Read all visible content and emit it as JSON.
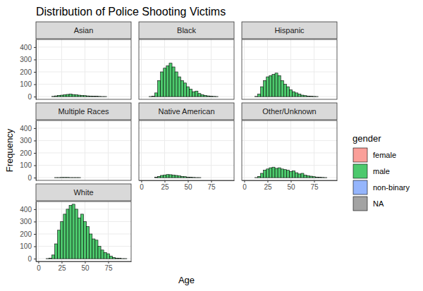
{
  "chart_data": {
    "type": "histogram",
    "title": "Distribution of Police Shooting Victims",
    "x_label": "Age",
    "y_label": "Frequency",
    "legend_title": "gender",
    "legend": "right",
    "grid": true,
    "xlim": [
      -2.6,
      99.6
    ],
    "xticks": [
      0,
      25,
      50,
      75
    ],
    "ylim": [
      -22,
      462
    ],
    "yticks": [
      0,
      100,
      200,
      300,
      400
    ],
    "bins": [
      2,
      5.1,
      8.2,
      11.3,
      14.4,
      17.5,
      20.6,
      23.7,
      26.8,
      29.9,
      33,
      36.1,
      39.2,
      42.3,
      45.4,
      48.5,
      51.6,
      54.7,
      57.8,
      60.9,
      64,
      67.1,
      70.2,
      73.3,
      76.4,
      79.5,
      82.6,
      85.7,
      88.8,
      91.9,
      95
    ],
    "series": [
      {
        "name": "female",
        "color": "#FA9F99"
      },
      {
        "name": "male",
        "color": "#4DC96D"
      },
      {
        "name": "non-binary",
        "color": "#95B5FC"
      },
      {
        "name": "NA",
        "color": "#A3A3A3"
      }
    ],
    "facets": [
      {
        "title": "Asian",
        "series": [
          {
            "name": "male",
            "values": [
              0,
              0,
              0,
              0,
              2,
              6,
              10,
              12,
              15,
              18,
              20,
              17,
              15,
              12,
              10,
              8,
              6,
              5,
              4,
              3,
              2,
              1,
              1,
              0,
              0,
              0,
              0,
              0,
              0,
              0
            ]
          }
        ]
      },
      {
        "title": "Black",
        "series": [
          {
            "name": "male",
            "values": [
              0,
              0,
              1,
              3,
              30,
              130,
              200,
              230,
              250,
              270,
              240,
              200,
              160,
              130,
              110,
              80,
              60,
              40,
              45,
              25,
              15,
              10,
              6,
              4,
              2,
              1,
              0,
              0,
              0,
              0
            ]
          }
        ]
      },
      {
        "title": "Hispanic",
        "series": [
          {
            "name": "male",
            "values": [
              0,
              0,
              0,
              2,
              20,
              80,
              130,
              160,
              170,
              180,
              190,
              170,
              130,
              100,
              80,
              55,
              40,
              30,
              20,
              12,
              8,
              5,
              3,
              2,
              1,
              0,
              0,
              0,
              0,
              0
            ]
          }
        ]
      },
      {
        "title": "Multiple Races",
        "series": [
          {
            "name": "male",
            "values": [
              0,
              0,
              0,
              0,
              0,
              1,
              1,
              2,
              2,
              2,
              1,
              1,
              1,
              1,
              0,
              0,
              0,
              0,
              0,
              0,
              0,
              0,
              0,
              0,
              0,
              0,
              0,
              0,
              0,
              0
            ]
          }
        ]
      },
      {
        "title": "Native American",
        "series": [
          {
            "name": "male",
            "values": [
              0,
              0,
              0,
              0,
              3,
              10,
              18,
              22,
              25,
              24,
              20,
              18,
              14,
              10,
              8,
              5,
              4,
              2,
              1,
              1,
              0,
              0,
              0,
              0,
              0,
              0,
              0,
              0,
              0,
              0
            ]
          }
        ]
      },
      {
        "title": "Other/Unknown",
        "series": [
          {
            "name": "male",
            "values": [
              0,
              0,
              0,
              1,
              10,
              35,
              60,
              70,
              80,
              85,
              75,
              80,
              70,
              65,
              60,
              50,
              55,
              40,
              30,
              35,
              20,
              15,
              12,
              8,
              5,
              3,
              2,
              1,
              0,
              0
            ]
          }
        ]
      },
      {
        "title": "White",
        "series": [
          {
            "name": "male",
            "values": [
              0,
              0,
              1,
              5,
              30,
              120,
              230,
              300,
              360,
              400,
              430,
              440,
              400,
              330,
              360,
              300,
              260,
              200,
              160,
              150,
              100,
              70,
              50,
              40,
              20,
              10,
              5,
              3,
              1,
              1
            ]
          }
        ]
      }
    ]
  }
}
